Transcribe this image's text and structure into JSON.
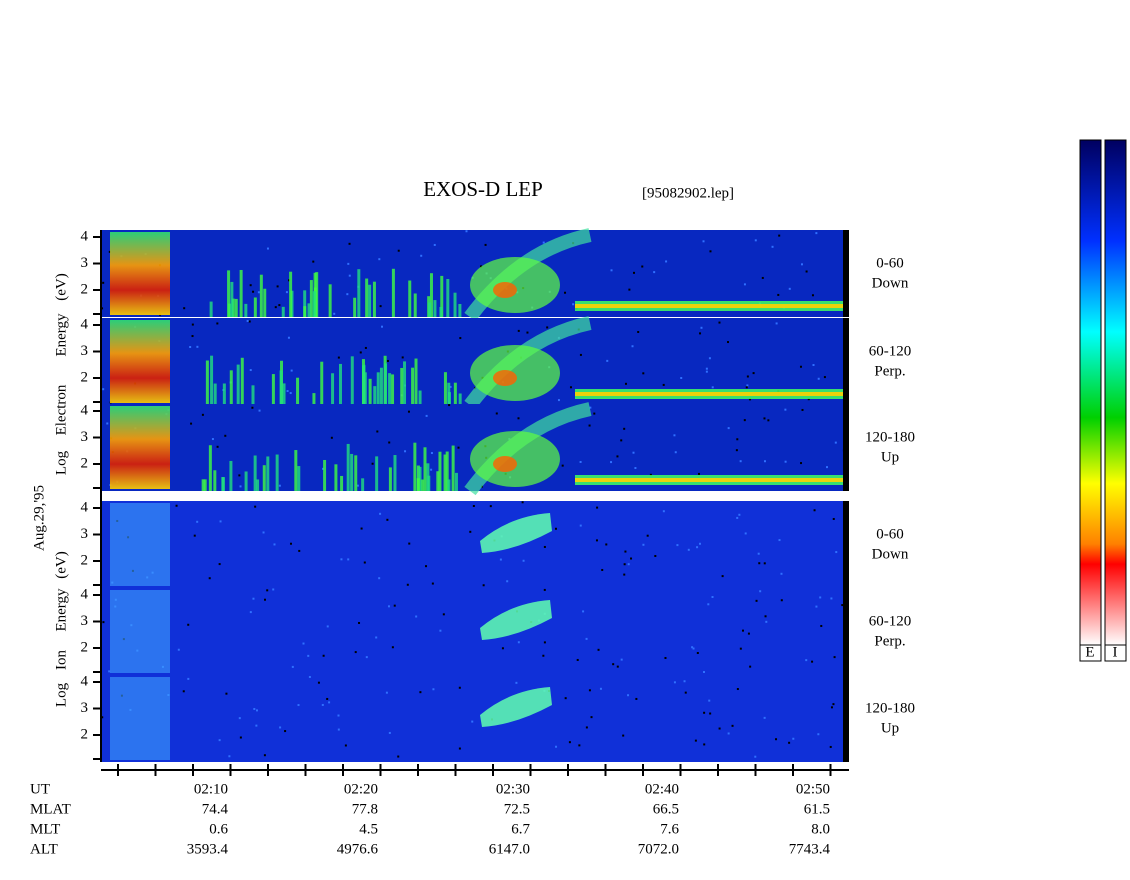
{
  "header": {
    "title": "EXOS-D LEP",
    "file": "[95082902.lep]"
  },
  "date": "Aug.29,'95",
  "electron_label": [
    "Log",
    "Electron",
    "Energy",
    "(eV)"
  ],
  "ion_label": [
    "Log",
    "Ion",
    "Energy",
    "(eV)"
  ],
  "panels": [
    {
      "range": "0-60",
      "direction": "Down",
      "yticks": [
        4,
        3,
        2
      ]
    },
    {
      "range": "60-120",
      "direction": "Perp.",
      "yticks": [
        4,
        3,
        2
      ]
    },
    {
      "range": "120-180",
      "direction": "Up",
      "yticks": [
        4,
        3,
        2
      ]
    },
    {
      "range": "0-60",
      "direction": "Down",
      "yticks": [
        4,
        3,
        2
      ]
    },
    {
      "range": "60-120",
      "direction": "Perp.",
      "yticks": [
        4,
        3,
        2
      ]
    },
    {
      "range": "120-180",
      "direction": "Up",
      "yticks": [
        4,
        3,
        2
      ]
    }
  ],
  "axis": {
    "rows": [
      {
        "label": "UT",
        "values": [
          "02:10",
          "02:20",
          "02:30",
          "02:40",
          "02:50"
        ]
      },
      {
        "label": "MLAT",
        "values": [
          "74.4",
          "77.8",
          "72.5",
          "66.5",
          "61.5"
        ]
      },
      {
        "label": "MLT",
        "values": [
          "0.6",
          "4.5",
          "6.7",
          "7.6",
          "8.0"
        ]
      },
      {
        "label": "ALT",
        "values": [
          "3593.4",
          "4976.6",
          "6147.0",
          "7072.0",
          "7743.4"
        ]
      }
    ]
  },
  "colorbar": {
    "labels": [
      "E",
      "I"
    ]
  }
}
